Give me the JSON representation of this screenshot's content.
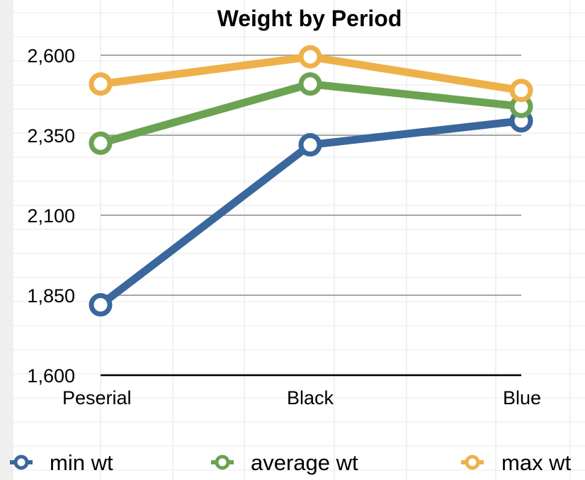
{
  "chart_data": {
    "type": "line",
    "title": "Weight by Period",
    "xlabel": "",
    "ylabel": "",
    "categories": [
      "Peserial",
      "Black",
      "Blue"
    ],
    "ylim": [
      1600,
      2650
    ],
    "yticks": [
      1600,
      1850,
      2100,
      2350,
      2600
    ],
    "ytick_labels": [
      "1,600",
      "1,850",
      "2,100",
      "2,350",
      "2,600"
    ],
    "grid": true,
    "legend_position": "bottom",
    "series": [
      {
        "name": "min wt",
        "color": "#3A679C",
        "values": [
          1820,
          2320,
          2395
        ]
      },
      {
        "name": "average wt",
        "color": "#6BA353",
        "values": [
          2325,
          2510,
          2440
        ]
      },
      {
        "name": "max wt",
        "color": "#EEB149",
        "values": [
          2510,
          2595,
          2490
        ]
      }
    ]
  }
}
